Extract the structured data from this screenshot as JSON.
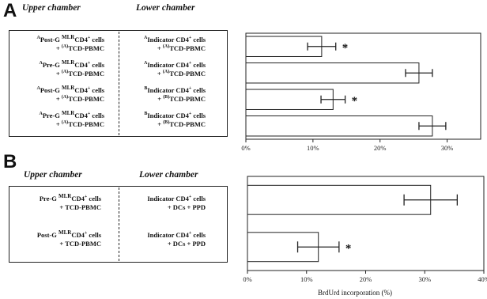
{
  "panels": {
    "A": {
      "letter": "A",
      "upper_header": "Upper chamber",
      "lower_header": "Lower chamber",
      "rows": [
        {
          "upper_sup": "A",
          "upper_main": "Post-G ",
          "upper_mlr": "MLR",
          "upper_rest": "CD4",
          "upper_plus": "+",
          "upper_tail": " cells",
          "upper_line2_pre": "+ ",
          "upper_line2_sup": "(A)",
          "upper_line2": "TCD-PBMC",
          "lower_sup": "A",
          "lower_main": "Indicator CD4",
          "lower_plus": "+",
          "lower_tail": " cells",
          "lower_line2_pre": "+ ",
          "lower_line2_sup": "(A)",
          "lower_line2": "TCD-PBMC"
        },
        {
          "upper_sup": "A",
          "upper_main": "Pre-G ",
          "upper_mlr": "MLR",
          "upper_rest": "CD4",
          "upper_plus": "+",
          "upper_tail": " cells",
          "upper_line2_pre": "+ ",
          "upper_line2_sup": "(A)",
          "upper_line2": "TCD-PBMC",
          "lower_sup": "A",
          "lower_main": "Indicator CD4",
          "lower_plus": "+",
          "lower_tail": " cells",
          "lower_line2_pre": "+ ",
          "lower_line2_sup": "(A)",
          "lower_line2": "TCD-PBMC"
        },
        {
          "upper_sup": "A",
          "upper_main": "Post-G ",
          "upper_mlr": "MLR",
          "upper_rest": "CD4",
          "upper_plus": "+",
          "upper_tail": " cells",
          "upper_line2_pre": "+ ",
          "upper_line2_sup": "(A)",
          "upper_line2": "TCD-PBMC",
          "lower_sup": "B",
          "lower_main": "Indicator CD4",
          "lower_plus": "+",
          "lower_tail": " cells",
          "lower_line2_pre": "+ ",
          "lower_line2_sup": "(B)",
          "lower_line2": "TCD-PBMC"
        },
        {
          "upper_sup": "A",
          "upper_main": "Pre-G ",
          "upper_mlr": "MLR",
          "upper_rest": "CD4",
          "upper_plus": "+",
          "upper_tail": " cells",
          "upper_line2_pre": "+ ",
          "upper_line2_sup": "(A)",
          "upper_line2": "TCD-PBMC",
          "lower_sup": "B",
          "lower_main": "Indicator CD4",
          "lower_plus": "+",
          "lower_tail": " cells",
          "lower_line2_pre": "+ ",
          "lower_line2_sup": "(B)",
          "lower_line2": "TCD-PBMC"
        }
      ]
    },
    "B": {
      "letter": "B",
      "upper_header": "Upper chamber",
      "lower_header": "Lower chamber",
      "rows": [
        {
          "upper_main": "Pre-G ",
          "upper_mlr": "MLR",
          "upper_rest": "CD4",
          "upper_plus": "+",
          "upper_tail": " cells",
          "upper_line2": "+ TCD-PBMC",
          "lower_main": "Indicator CD4",
          "lower_plus": "+",
          "lower_tail": " cells",
          "lower_line2": "+ DCs + PPD"
        },
        {
          "upper_main": "Post-G ",
          "upper_mlr": "MLR",
          "upper_rest": "CD4",
          "upper_plus": "+",
          "upper_tail": " cells",
          "upper_line2": "+ TCD-PBMC",
          "lower_main": "Indicator CD4",
          "lower_plus": "+",
          "lower_tail": " cells",
          "lower_line2": "+ DCs + PPD"
        }
      ]
    }
  },
  "chart_data": [
    {
      "type": "bar",
      "orientation": "horizontal",
      "panel": "A",
      "values": [
        11.3,
        25.8,
        13.0,
        27.8
      ],
      "errors": [
        2.1,
        2.0,
        1.8,
        2.0
      ],
      "significance": [
        "*",
        "",
        "*",
        ""
      ],
      "xlim": [
        0,
        35
      ],
      "xticks": [
        0,
        10,
        20,
        30
      ],
      "xtick_labels": [
        "0%",
        "10%",
        "20%",
        "30%"
      ],
      "xlabel": ""
    },
    {
      "type": "bar",
      "orientation": "horizontal",
      "panel": "B",
      "values": [
        31.0,
        12.0
      ],
      "errors": [
        4.5,
        3.5
      ],
      "significance": [
        "",
        "*"
      ],
      "xlim": [
        0,
        40
      ],
      "xticks": [
        0,
        10,
        20,
        30,
        40
      ],
      "xtick_labels": [
        "0%",
        "10%",
        "20%",
        "30%",
        "40%"
      ],
      "xlabel": "BrdUrd incorporation (%)"
    }
  ]
}
